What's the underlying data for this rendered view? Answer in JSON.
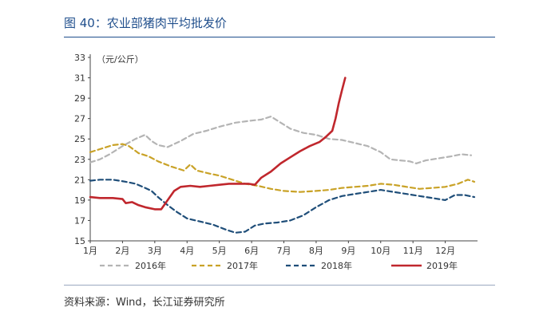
{
  "figure": {
    "title": "图 40：农业部猪肉平均批发价",
    "source": "资料来源：Wind，长江证券研究所"
  },
  "chart_data": {
    "type": "line",
    "unit_label": "（元/公斤）",
    "ylim": [
      15,
      33
    ],
    "y_ticks": [
      15,
      17,
      19,
      21,
      23,
      25,
      27,
      29,
      31,
      33
    ],
    "xlim": [
      1,
      13
    ],
    "x_tick_labels": [
      "1月",
      "2月",
      "3月",
      "4月",
      "5月",
      "6月",
      "7月",
      "8月",
      "9月",
      "10月",
      "11月",
      "12月"
    ],
    "grid": false,
    "legend_position": "bottom",
    "series": [
      {
        "name": "2016年",
        "color": "#b4b4b4",
        "dash": "dashed",
        "points": [
          [
            1.0,
            22.7
          ],
          [
            1.3,
            23.0
          ],
          [
            1.6,
            23.5
          ],
          [
            2.0,
            24.3
          ],
          [
            2.4,
            25.0
          ],
          [
            2.7,
            25.4
          ],
          [
            2.9,
            24.8
          ],
          [
            3.1,
            24.4
          ],
          [
            3.4,
            24.2
          ],
          [
            3.8,
            24.8
          ],
          [
            4.2,
            25.5
          ],
          [
            4.6,
            25.8
          ],
          [
            5.0,
            26.2
          ],
          [
            5.5,
            26.6
          ],
          [
            6.0,
            26.8
          ],
          [
            6.3,
            26.9
          ],
          [
            6.6,
            27.2
          ],
          [
            6.9,
            26.6
          ],
          [
            7.2,
            26.0
          ],
          [
            7.6,
            25.6
          ],
          [
            8.0,
            25.4
          ],
          [
            8.4,
            25.0
          ],
          [
            8.8,
            24.9
          ],
          [
            9.2,
            24.6
          ],
          [
            9.6,
            24.3
          ],
          [
            10.0,
            23.7
          ],
          [
            10.3,
            23.0
          ],
          [
            10.6,
            22.9
          ],
          [
            10.9,
            22.8
          ],
          [
            11.1,
            22.6
          ],
          [
            11.4,
            22.9
          ],
          [
            11.8,
            23.1
          ],
          [
            12.2,
            23.3
          ],
          [
            12.5,
            23.5
          ],
          [
            12.8,
            23.4
          ]
        ]
      },
      {
        "name": "2017年",
        "color": "#c9a227",
        "dash": "dashed",
        "points": [
          [
            1.0,
            23.7
          ],
          [
            1.3,
            24.0
          ],
          [
            1.7,
            24.4
          ],
          [
            2.0,
            24.5
          ],
          [
            2.2,
            24.3
          ],
          [
            2.5,
            23.6
          ],
          [
            2.8,
            23.3
          ],
          [
            3.1,
            22.8
          ],
          [
            3.5,
            22.3
          ],
          [
            3.9,
            21.9
          ],
          [
            4.1,
            22.5
          ],
          [
            4.3,
            21.9
          ],
          [
            4.7,
            21.6
          ],
          [
            5.0,
            21.4
          ],
          [
            5.4,
            21.0
          ],
          [
            5.8,
            20.6
          ],
          [
            6.2,
            20.4
          ],
          [
            6.6,
            20.1
          ],
          [
            7.0,
            19.9
          ],
          [
            7.5,
            19.8
          ],
          [
            8.0,
            19.9
          ],
          [
            8.4,
            20.0
          ],
          [
            8.8,
            20.2
          ],
          [
            9.2,
            20.3
          ],
          [
            9.6,
            20.4
          ],
          [
            10.0,
            20.6
          ],
          [
            10.4,
            20.5
          ],
          [
            10.8,
            20.3
          ],
          [
            11.2,
            20.1
          ],
          [
            11.6,
            20.2
          ],
          [
            12.0,
            20.3
          ],
          [
            12.4,
            20.6
          ],
          [
            12.7,
            21.0
          ],
          [
            12.9,
            20.8
          ]
        ]
      },
      {
        "name": "2018年",
        "color": "#1f4e79",
        "dash": "dashed",
        "points": [
          [
            1.0,
            20.9
          ],
          [
            1.3,
            21.0
          ],
          [
            1.7,
            21.0
          ],
          [
            2.1,
            20.8
          ],
          [
            2.4,
            20.6
          ],
          [
            2.7,
            20.2
          ],
          [
            2.9,
            19.9
          ],
          [
            3.1,
            19.3
          ],
          [
            3.4,
            18.5
          ],
          [
            3.7,
            17.8
          ],
          [
            4.0,
            17.2
          ],
          [
            4.4,
            16.9
          ],
          [
            4.8,
            16.6
          ],
          [
            5.2,
            16.1
          ],
          [
            5.5,
            15.8
          ],
          [
            5.8,
            15.9
          ],
          [
            6.1,
            16.5
          ],
          [
            6.4,
            16.7
          ],
          [
            6.8,
            16.8
          ],
          [
            7.2,
            17.0
          ],
          [
            7.6,
            17.5
          ],
          [
            8.0,
            18.3
          ],
          [
            8.4,
            19.0
          ],
          [
            8.8,
            19.4
          ],
          [
            9.2,
            19.6
          ],
          [
            9.6,
            19.8
          ],
          [
            10.0,
            20.0
          ],
          [
            10.4,
            19.8
          ],
          [
            10.8,
            19.6
          ],
          [
            11.2,
            19.4
          ],
          [
            11.6,
            19.2
          ],
          [
            12.0,
            19.0
          ],
          [
            12.3,
            19.5
          ],
          [
            12.6,
            19.5
          ],
          [
            12.9,
            19.3
          ]
        ]
      },
      {
        "name": "2019年",
        "color": "#c0272d",
        "dash": "solid",
        "points": [
          [
            1.0,
            19.3
          ],
          [
            1.3,
            19.2
          ],
          [
            1.7,
            19.2
          ],
          [
            2.0,
            19.1
          ],
          [
            2.1,
            18.7
          ],
          [
            2.3,
            18.8
          ],
          [
            2.5,
            18.5
          ],
          [
            2.7,
            18.3
          ],
          [
            3.0,
            18.1
          ],
          [
            3.2,
            18.1
          ],
          [
            3.4,
            19.0
          ],
          [
            3.6,
            19.9
          ],
          [
            3.8,
            20.3
          ],
          [
            4.1,
            20.4
          ],
          [
            4.4,
            20.3
          ],
          [
            4.7,
            20.4
          ],
          [
            5.0,
            20.5
          ],
          [
            5.3,
            20.6
          ],
          [
            5.6,
            20.6
          ],
          [
            5.9,
            20.6
          ],
          [
            6.1,
            20.5
          ],
          [
            6.3,
            21.2
          ],
          [
            6.6,
            21.8
          ],
          [
            6.9,
            22.6
          ],
          [
            7.2,
            23.2
          ],
          [
            7.5,
            23.8
          ],
          [
            7.8,
            24.3
          ],
          [
            8.1,
            24.7
          ],
          [
            8.3,
            25.2
          ],
          [
            8.5,
            25.8
          ],
          [
            8.6,
            27.0
          ],
          [
            8.7,
            28.5
          ],
          [
            8.8,
            29.8
          ],
          [
            8.9,
            31.0
          ]
        ]
      }
    ]
  }
}
